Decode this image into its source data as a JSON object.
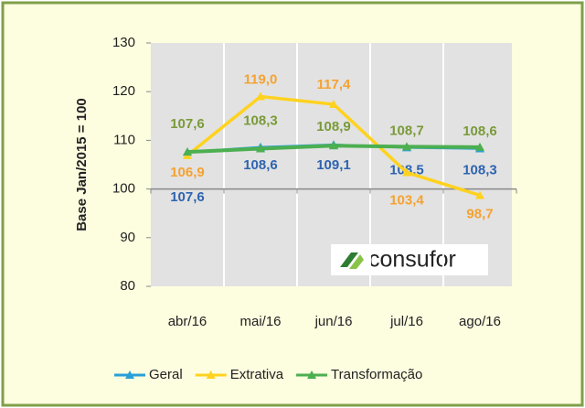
{
  "chart_data": {
    "type": "line",
    "ylabel": "Base Jan/2015 = 100",
    "logo": "consufor",
    "categories": [
      "abr/16",
      "mai/16",
      "jun/16",
      "jul/16",
      "ago/16"
    ],
    "ylim": [
      80,
      130
    ],
    "yticks": [
      80,
      90,
      100,
      110,
      120,
      130
    ],
    "axis_crossing": 100,
    "legend": "bottom",
    "series": [
      {
        "name": "Geral",
        "color": "#2aa0d8",
        "label_color": "#2e64b0",
        "values": [
          107.6,
          108.6,
          109.1,
          108.5,
          108.3
        ],
        "value_labels": [
          "107,6",
          "108,6",
          "109,1",
          "108,5",
          "108,3"
        ]
      },
      {
        "name": "Extrativa",
        "color": "#ffd21f",
        "label_color": "#f5a230",
        "values": [
          106.9,
          119.0,
          117.4,
          103.4,
          98.7
        ],
        "value_labels": [
          "106,9",
          "119,0",
          "117,4",
          "103,4",
          "98,7"
        ]
      },
      {
        "name": "Transformação",
        "color": "#4caf50",
        "label_color": "#7a9a3a",
        "values": [
          107.6,
          108.3,
          108.9,
          108.7,
          108.6
        ],
        "value_labels": [
          "107,6",
          "108,3",
          "108,9",
          "108,7",
          "108,6"
        ]
      }
    ]
  }
}
